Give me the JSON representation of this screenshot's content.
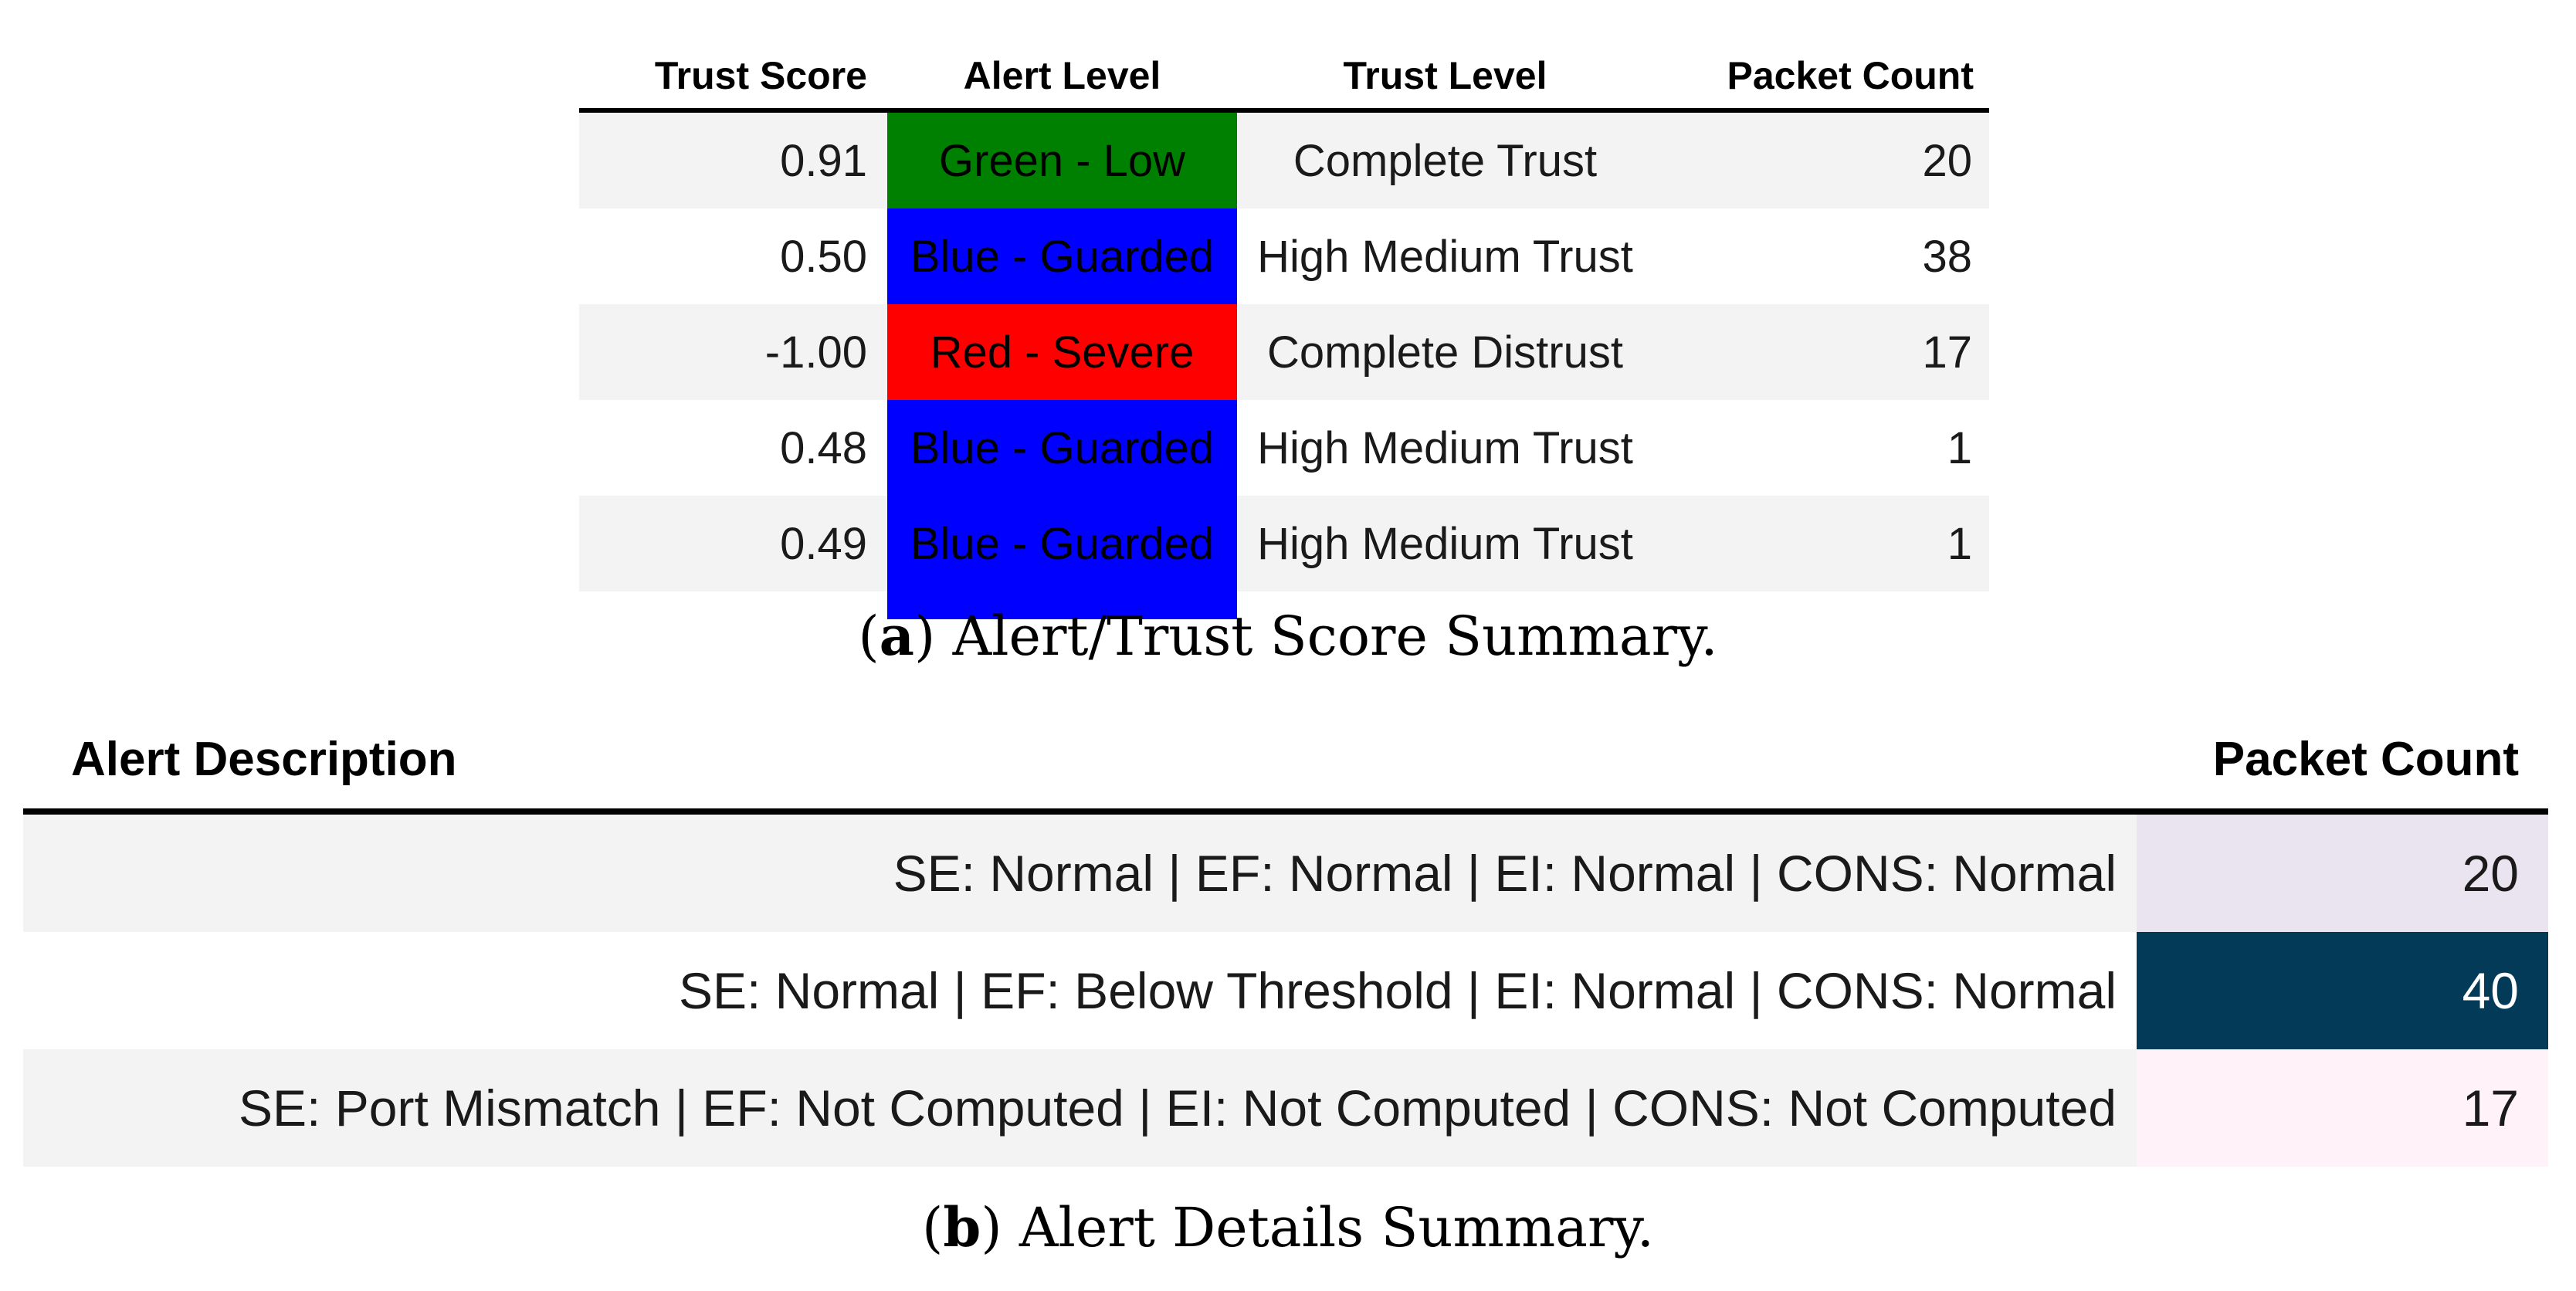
{
  "captions": {
    "a": {
      "open": "(",
      "letter": "a",
      "close": ")",
      "text": "Alert/Trust Score Summary."
    },
    "b": {
      "open": "(",
      "letter": "b",
      "close": ")",
      "text": "Alert Details Summary."
    }
  },
  "table_a": {
    "columns": [
      "Trust Score",
      "Alert Level",
      "Trust Level",
      "Packet Count"
    ],
    "rows": [
      {
        "trust_score": "0.91",
        "alert_level": "Green - Low",
        "alert_color": "#008000",
        "trust_level": "Complete Trust",
        "packet_count": "20"
      },
      {
        "trust_score": "0.50",
        "alert_level": "Blue - Guarded",
        "alert_color": "#0000ff",
        "trust_level": "High Medium Trust",
        "packet_count": "38"
      },
      {
        "trust_score": "-1.00",
        "alert_level": "Red - Severe",
        "alert_color": "#ff0000",
        "trust_level": "Complete Distrust",
        "packet_count": "17"
      },
      {
        "trust_score": "0.48",
        "alert_level": "Blue - Guarded",
        "alert_color": "#0000ff",
        "trust_level": "High Medium Trust",
        "packet_count": "1"
      },
      {
        "trust_score": "0.49",
        "alert_level": "Blue - Guarded",
        "alert_color": "#0000ff",
        "trust_level": "High Medium Trust",
        "packet_count": "1"
      }
    ]
  },
  "table_b": {
    "columns": [
      "Alert Description",
      "Packet Count"
    ],
    "rows": [
      {
        "description": "SE: Normal | EF: Normal | EI: Normal | CONS: Normal",
        "packet_count": "20",
        "count_bg": "#e9e4f0",
        "count_fg": "#1a1a1a"
      },
      {
        "description": "SE: Normal | EF: Below Threshold | EI: Normal | CONS: Normal",
        "packet_count": "40",
        "count_bg": "#033a58",
        "count_fg": "#ffffff"
      },
      {
        "description": "SE: Port Mismatch | EF: Not Computed | EI: Not Computed | CONS: Not Computed",
        "packet_count": "17",
        "count_bg": "#fff2f9",
        "count_fg": "#1a1a1a"
      }
    ]
  },
  "colors": {
    "stripe": "#f3f3f3",
    "rule": "#000000",
    "alert_green": "#008000",
    "alert_blue": "#0000ff",
    "alert_red": "#ff0000",
    "heat_low": "#fff2f9",
    "heat_mid": "#e9e4f0",
    "heat_high": "#033a58"
  }
}
